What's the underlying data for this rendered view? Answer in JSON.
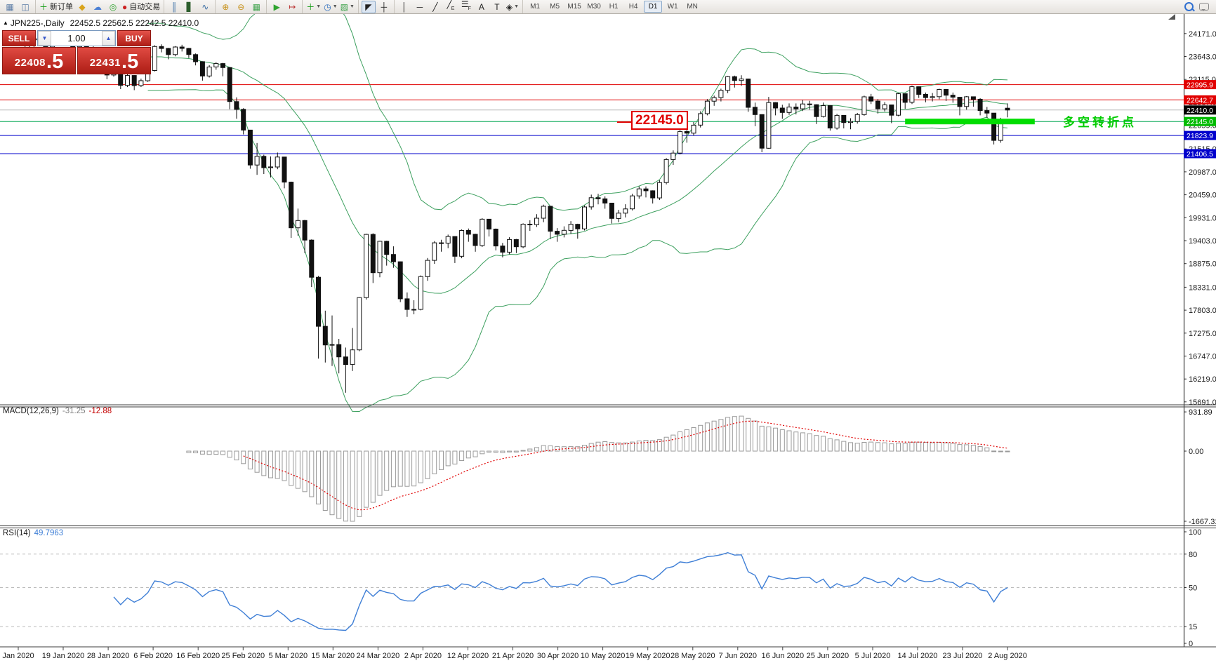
{
  "toolbar": {
    "groups": [
      [
        {
          "name": "new-chart",
          "glyph": "▦",
          "color": "#5a7ba6"
        },
        {
          "name": "chart-profiles",
          "glyph": "◫",
          "color": "#5a7ba6"
        }
      ],
      [
        {
          "name": "new-order",
          "glyph": "＋",
          "color": "#149c14",
          "label": "新订单"
        },
        {
          "name": "deposit",
          "glyph": "◆",
          "color": "#d9a41b"
        },
        {
          "name": "community",
          "glyph": "☁",
          "color": "#4a7fd4"
        },
        {
          "name": "signals",
          "glyph": "◎",
          "color": "#2fa32f"
        },
        {
          "name": "autotrading",
          "glyph": "●",
          "color": "#cc2222",
          "label": "自动交易"
        }
      ],
      [
        {
          "name": "bar-chart-mode",
          "glyph": "║",
          "color": "#3a6ea5"
        },
        {
          "name": "candlestick-mode",
          "glyph": "▋",
          "color": "#2c5d2c"
        },
        {
          "name": "line-chart-mode",
          "glyph": "∿",
          "color": "#3a6ea5"
        }
      ],
      [
        {
          "name": "zoom-in",
          "glyph": "⊕",
          "color": "#c8921a"
        },
        {
          "name": "zoom-out",
          "glyph": "⊖",
          "color": "#c8921a"
        },
        {
          "name": "tile-windows",
          "glyph": "▦",
          "color": "#3fa34d"
        }
      ],
      [
        {
          "name": "auto-scroll",
          "glyph": "▶",
          "color": "#2fa32f"
        },
        {
          "name": "chart-shift",
          "glyph": "↦",
          "color": "#b33"
        }
      ],
      [
        {
          "name": "add-indicator",
          "glyph": "＋",
          "color": "#149c14",
          "dropdown": true
        },
        {
          "name": "period-select",
          "glyph": "◷",
          "color": "#2f6fc0",
          "dropdown": true
        },
        {
          "name": "template-select",
          "glyph": "▨",
          "color": "#3fa34d",
          "dropdown": true
        }
      ],
      [
        {
          "name": "cursor",
          "glyph": "◤",
          "color": "#222",
          "pressed": true
        },
        {
          "name": "crosshair",
          "glyph": "┼",
          "color": "#222"
        }
      ],
      [
        {
          "name": "vertical-line",
          "glyph": "│",
          "color": "#222"
        },
        {
          "name": "horizontal-line",
          "glyph": "─",
          "color": "#222"
        },
        {
          "name": "trend-line",
          "glyph": "╱",
          "color": "#222"
        },
        {
          "name": "equidistant-channel",
          "glyph": "╱",
          "sub": "E",
          "color": "#222"
        },
        {
          "name": "fibonacci",
          "glyph": "☰",
          "sub": "F",
          "color": "#222"
        },
        {
          "name": "text",
          "glyph": "A",
          "color": "#222"
        },
        {
          "name": "text-label",
          "glyph": "T",
          "color": "#222"
        },
        {
          "name": "arrows",
          "glyph": "◈",
          "color": "#222",
          "dropdown": true
        }
      ]
    ],
    "timeframes": [
      "M1",
      "M5",
      "M15",
      "M30",
      "H1",
      "H4",
      "D1",
      "W1",
      "MN"
    ],
    "active_timeframe": "D1"
  },
  "chart": {
    "symbol_period": "JPN225-,Daily",
    "ohlc_line": "22452.5 22562.5 22242.5 22410.0"
  },
  "one_click": {
    "sell_label": "SELL",
    "buy_label": "BUY",
    "volume": "1.00",
    "sell_price": "22408",
    "sell_price_big": ".5",
    "buy_price": "22431",
    "buy_price_big": ".5"
  },
  "indicators": {
    "macd": {
      "name": "MACD(12,26,9)",
      "value_main": "-31.25",
      "value_signal": "-12.88"
    },
    "rsi": {
      "name": "RSI(14)",
      "value": "49.7963"
    }
  },
  "annotations": {
    "callout_text": "22145.0",
    "note_text": "多空转折点",
    "note_color": "#00cc00"
  },
  "chart_data": {
    "type": "candlestick",
    "symbol": "JPN225-",
    "period": "Daily",
    "current": {
      "open": 22452.5,
      "high": 22562.5,
      "low": 22242.5,
      "close": 22410.0,
      "bid": 22408.5,
      "ask": 22431.5
    },
    "price_scale": {
      "top_price": 24620,
      "bottom_price": 15640
    },
    "price_axis_ticks": [
      "24171.0",
      "23643.0",
      "23115.0",
      "22587.0",
      "22059.0",
      "21515.0",
      "20987.0",
      "20459.0",
      "19931.0",
      "19403.0",
      "18875.0",
      "18331.0",
      "17803.0",
      "17275.0",
      "16747.0",
      "16219.0",
      "15691.0"
    ],
    "date_ticks": [
      "Jan 2020",
      "19 Jan 2020",
      "28 Jan 2020",
      "6 Feb 2020",
      "16 Feb 2020",
      "25 Feb 2020",
      "5 Mar 2020",
      "15 Mar 2020",
      "24 Mar 2020",
      "2 Apr 2020",
      "12 Apr 2020",
      "21 Apr 2020",
      "30 Apr 2020",
      "10 May 2020",
      "19 May 2020",
      "28 May 2020",
      "7 Jun 2020",
      "16 Jun 2020",
      "25 Jun 2020",
      "5 Jul 2020",
      "14 Jul 2020",
      "23 Jul 2020",
      "2 Aug 2020"
    ],
    "levels": [
      {
        "value": 22995.9,
        "label": "22995.9",
        "color": "#e10000",
        "tag_bg": "#e10000"
      },
      {
        "value": 22642.7,
        "label": "22642.7",
        "color": "#e10000",
        "tag_bg": "#e10000"
      },
      {
        "value": 22410.0,
        "label": "22410.0",
        "color": "#b8b8b8",
        "tag_bg": "#000000"
      },
      {
        "value": 22145.0,
        "label": "22145.0",
        "color": "#00a651",
        "tag_bg": "#00bb00"
      },
      {
        "value": 21823.9,
        "label": "21823.9",
        "color": "#0000cc",
        "tag_bg": "#0000cc"
      },
      {
        "value": 21406.5,
        "label": "21406.5",
        "color": "#0000cc",
        "tag_bg": "#0000cc"
      }
    ],
    "highlight": {
      "price": 22145.0,
      "from_bar": 130,
      "to_bar": 149,
      "color": "#00dd00",
      "thickness": 8
    },
    "overlays": [
      {
        "name": "Bollinger Bands",
        "period": 20,
        "deviation": 2,
        "color": "#3da05f"
      }
    ],
    "macd": {
      "fast": 12,
      "slow": 26,
      "signal": 9,
      "value_main": -31.25,
      "value_signal": -12.88,
      "axis_ticks": [
        {
          "v": 931.89,
          "label": "931.89"
        },
        {
          "v": 0,
          "label": "0.00"
        },
        {
          "v": -1667.31,
          "label": "-1667.31"
        }
      ],
      "hist_color": "#9a9a9a",
      "signal_color": "#e00000"
    },
    "rsi": {
      "period": 14,
      "value": 49.7963,
      "axis_ticks": [
        100,
        80,
        50,
        15,
        0
      ],
      "dashed_levels": [
        80,
        50,
        15
      ],
      "color": "#3f7fd6"
    },
    "candles": [
      [
        23650,
        23770,
        23600,
        23740
      ],
      [
        23740,
        23905,
        23705,
        23850
      ],
      [
        23850,
        24070,
        23820,
        24050
      ],
      [
        24050,
        24091,
        23940,
        24025
      ],
      [
        24025,
        24044,
        23800,
        23860
      ],
      [
        23860,
        23965,
        23812,
        23933
      ],
      [
        23933,
        24115,
        23898,
        24041
      ],
      [
        24041,
        24121,
        23988,
        24084
      ],
      [
        24084,
        24090,
        23810,
        23864
      ],
      [
        23864,
        24052,
        23820,
        24031
      ],
      [
        24031,
        24060,
        23748,
        23795
      ],
      [
        23795,
        23882,
        23718,
        23827
      ],
      [
        23827,
        23830,
        23290,
        23344
      ],
      [
        23344,
        23393,
        23118,
        23216
      ],
      [
        23216,
        23422,
        23180,
        23379
      ],
      [
        23379,
        23391,
        22892,
        22977
      ],
      [
        22977,
        23252,
        22938,
        23205
      ],
      [
        23205,
        23212,
        22868,
        22972
      ],
      [
        22972,
        23132,
        22940,
        23085
      ],
      [
        23085,
        23362,
        23058,
        23320
      ],
      [
        23320,
        23902,
        23298,
        23873
      ],
      [
        23873,
        23922,
        23738,
        23828
      ],
      [
        23828,
        23842,
        23578,
        23686
      ],
      [
        23686,
        23882,
        23648,
        23861
      ],
      [
        23861,
        23912,
        23758,
        23828
      ],
      [
        23828,
        23841,
        23608,
        23687
      ],
      [
        23687,
        23712,
        23438,
        23523
      ],
      [
        23523,
        23532,
        23088,
        23194
      ],
      [
        23194,
        23442,
        23158,
        23401
      ],
      [
        23401,
        23512,
        23338,
        23479
      ],
      [
        23479,
        23492,
        23188,
        23387
      ],
      [
        23387,
        23390,
        22428,
        22605
      ],
      [
        22605,
        22702,
        22208,
        22426
      ],
      [
        22426,
        22452,
        21848,
        21948
      ],
      [
        21948,
        21952,
        21058,
        21143
      ],
      [
        21143,
        21652,
        20918,
        21344
      ],
      [
        21344,
        21382,
        20938,
        21082
      ],
      [
        21082,
        21342,
        20858,
        21100
      ],
      [
        21100,
        21432,
        21048,
        21329
      ],
      [
        21329,
        21331,
        20608,
        20750
      ],
      [
        20750,
        20762,
        19468,
        19699
      ],
      [
        19699,
        20142,
        19518,
        19867
      ],
      [
        19867,
        19882,
        19118,
        19416
      ],
      [
        19416,
        19432,
        18338,
        18560
      ],
      [
        18560,
        18592,
        16688,
        17431
      ],
      [
        17431,
        17792,
        16598,
        17002
      ],
      [
        17002,
        17682,
        16518,
        17011
      ],
      [
        17011,
        17142,
        16348,
        16727
      ],
      [
        16727,
        16942,
        15902,
        16553
      ],
      [
        16553,
        17392,
        16402,
        16888
      ],
      [
        16888,
        18102,
        16858,
        18092
      ],
      [
        18092,
        19562,
        18048,
        19547
      ],
      [
        19547,
        19572,
        18428,
        18665
      ],
      [
        18665,
        19402,
        18558,
        19389
      ],
      [
        19389,
        19402,
        18828,
        19085
      ],
      [
        19085,
        19272,
        18778,
        18917
      ],
      [
        18917,
        18922,
        17988,
        18065
      ],
      [
        18065,
        18212,
        17648,
        17819
      ],
      [
        17819,
        18032,
        17708,
        17820
      ],
      [
        17820,
        18602,
        17798,
        18576
      ],
      [
        18576,
        19002,
        18478,
        18950
      ],
      [
        18950,
        19392,
        18868,
        19353
      ],
      [
        19353,
        19422,
        19148,
        19346
      ],
      [
        19346,
        19542,
        19228,
        19499
      ],
      [
        19499,
        19502,
        18888,
        19043
      ],
      [
        19043,
        19662,
        18998,
        19638
      ],
      [
        19638,
        19682,
        19378,
        19550
      ],
      [
        19550,
        19562,
        19148,
        19290
      ],
      [
        19290,
        19922,
        19258,
        19897
      ],
      [
        19897,
        19902,
        19498,
        19669
      ],
      [
        19669,
        19682,
        19178,
        19280
      ],
      [
        19280,
        19352,
        19018,
        19138
      ],
      [
        19138,
        19482,
        19088,
        19429
      ],
      [
        19429,
        19442,
        19118,
        19262
      ],
      [
        19262,
        19802,
        19228,
        19783
      ],
      [
        19783,
        19872,
        19628,
        19771
      ],
      [
        19771,
        20012,
        19718,
        19920
      ],
      [
        19920,
        20232,
        19828,
        20194
      ],
      [
        20194,
        20202,
        19438,
        19619
      ],
      [
        19619,
        19692,
        19378,
        19550
      ],
      [
        19550,
        19732,
        19478,
        19640
      ],
      [
        19640,
        19852,
        19558,
        19780
      ],
      [
        19780,
        19792,
        19448,
        19675
      ],
      [
        19675,
        20212,
        19638,
        20179
      ],
      [
        20179,
        20462,
        20118,
        20391
      ],
      [
        20391,
        20482,
        20238,
        20366
      ],
      [
        20366,
        20422,
        20138,
        20267
      ],
      [
        20267,
        20272,
        19798,
        19915
      ],
      [
        19915,
        20112,
        19828,
        20037
      ],
      [
        20037,
        20242,
        19938,
        20134
      ],
      [
        20134,
        20482,
        20098,
        20433
      ],
      [
        20433,
        20652,
        20368,
        20595
      ],
      [
        20595,
        20652,
        20398,
        20552
      ],
      [
        20552,
        20562,
        20258,
        20388
      ],
      [
        20388,
        20792,
        20338,
        20741
      ],
      [
        20741,
        21302,
        20698,
        21271
      ],
      [
        21271,
        21482,
        21148,
        21419
      ],
      [
        21419,
        21952,
        21388,
        21916
      ],
      [
        21916,
        21952,
        21658,
        21878
      ],
      [
        21878,
        22132,
        21818,
        22062
      ],
      [
        22062,
        22382,
        22008,
        22326
      ],
      [
        22326,
        22662,
        22288,
        22614
      ],
      [
        22614,
        22742,
        22508,
        22696
      ],
      [
        22696,
        22902,
        22608,
        22864
      ],
      [
        22864,
        23192,
        22798,
        23178
      ],
      [
        23178,
        23202,
        22928,
        23091
      ],
      [
        23091,
        23212,
        22968,
        23125
      ],
      [
        23125,
        23132,
        22368,
        22473
      ],
      [
        22473,
        22582,
        22038,
        22305
      ],
      [
        22305,
        22312,
        21438,
        21531
      ],
      [
        21531,
        22712,
        21518,
        22582
      ],
      [
        22582,
        22592,
        22288,
        22456
      ],
      [
        22456,
        22532,
        22208,
        22355
      ],
      [
        22355,
        22562,
        22298,
        22479
      ],
      [
        22479,
        22562,
        22308,
        22437
      ],
      [
        22437,
        22642,
        22388,
        22549
      ],
      [
        22549,
        22622,
        22418,
        22534
      ],
      [
        22534,
        22542,
        22088,
        22260
      ],
      [
        22260,
        22582,
        22238,
        22512
      ],
      [
        22512,
        22522,
        21938,
        21995
      ],
      [
        21995,
        22322,
        21958,
        22288
      ],
      [
        22288,
        22292,
        21988,
        22122
      ],
      [
        22122,
        22222,
        21968,
        22146
      ],
      [
        22146,
        22342,
        22098,
        22306
      ],
      [
        22306,
        22742,
        22278,
        22714
      ],
      [
        22714,
        22782,
        22548,
        22615
      ],
      [
        22615,
        22662,
        22328,
        22438
      ],
      [
        22438,
        22592,
        22378,
        22529
      ],
      [
        22529,
        22532,
        22108,
        22291
      ],
      [
        22291,
        22802,
        22268,
        22785
      ],
      [
        22785,
        22792,
        22438,
        22587
      ],
      [
        22587,
        22972,
        22548,
        22946
      ],
      [
        22946,
        22952,
        22688,
        22770
      ],
      [
        22770,
        22812,
        22588,
        22696
      ],
      [
        22696,
        22802,
        22608,
        22717
      ],
      [
        22717,
        22902,
        22658,
        22884
      ],
      [
        22884,
        22892,
        22618,
        22751
      ],
      [
        22751,
        22812,
        22578,
        22705
      ],
      [
        22705,
        22712,
        22288,
        22490
      ],
      [
        22490,
        22732,
        22418,
        22715
      ],
      [
        22715,
        22722,
        22488,
        22657
      ],
      [
        22657,
        22682,
        22288,
        22397
      ],
      [
        22397,
        22482,
        22228,
        22339
      ],
      [
        22339,
        22342,
        21618,
        21710
      ],
      [
        21710,
        22232,
        21658,
        22195
      ],
      [
        22452,
        22563,
        22243,
        22410
      ]
    ]
  }
}
